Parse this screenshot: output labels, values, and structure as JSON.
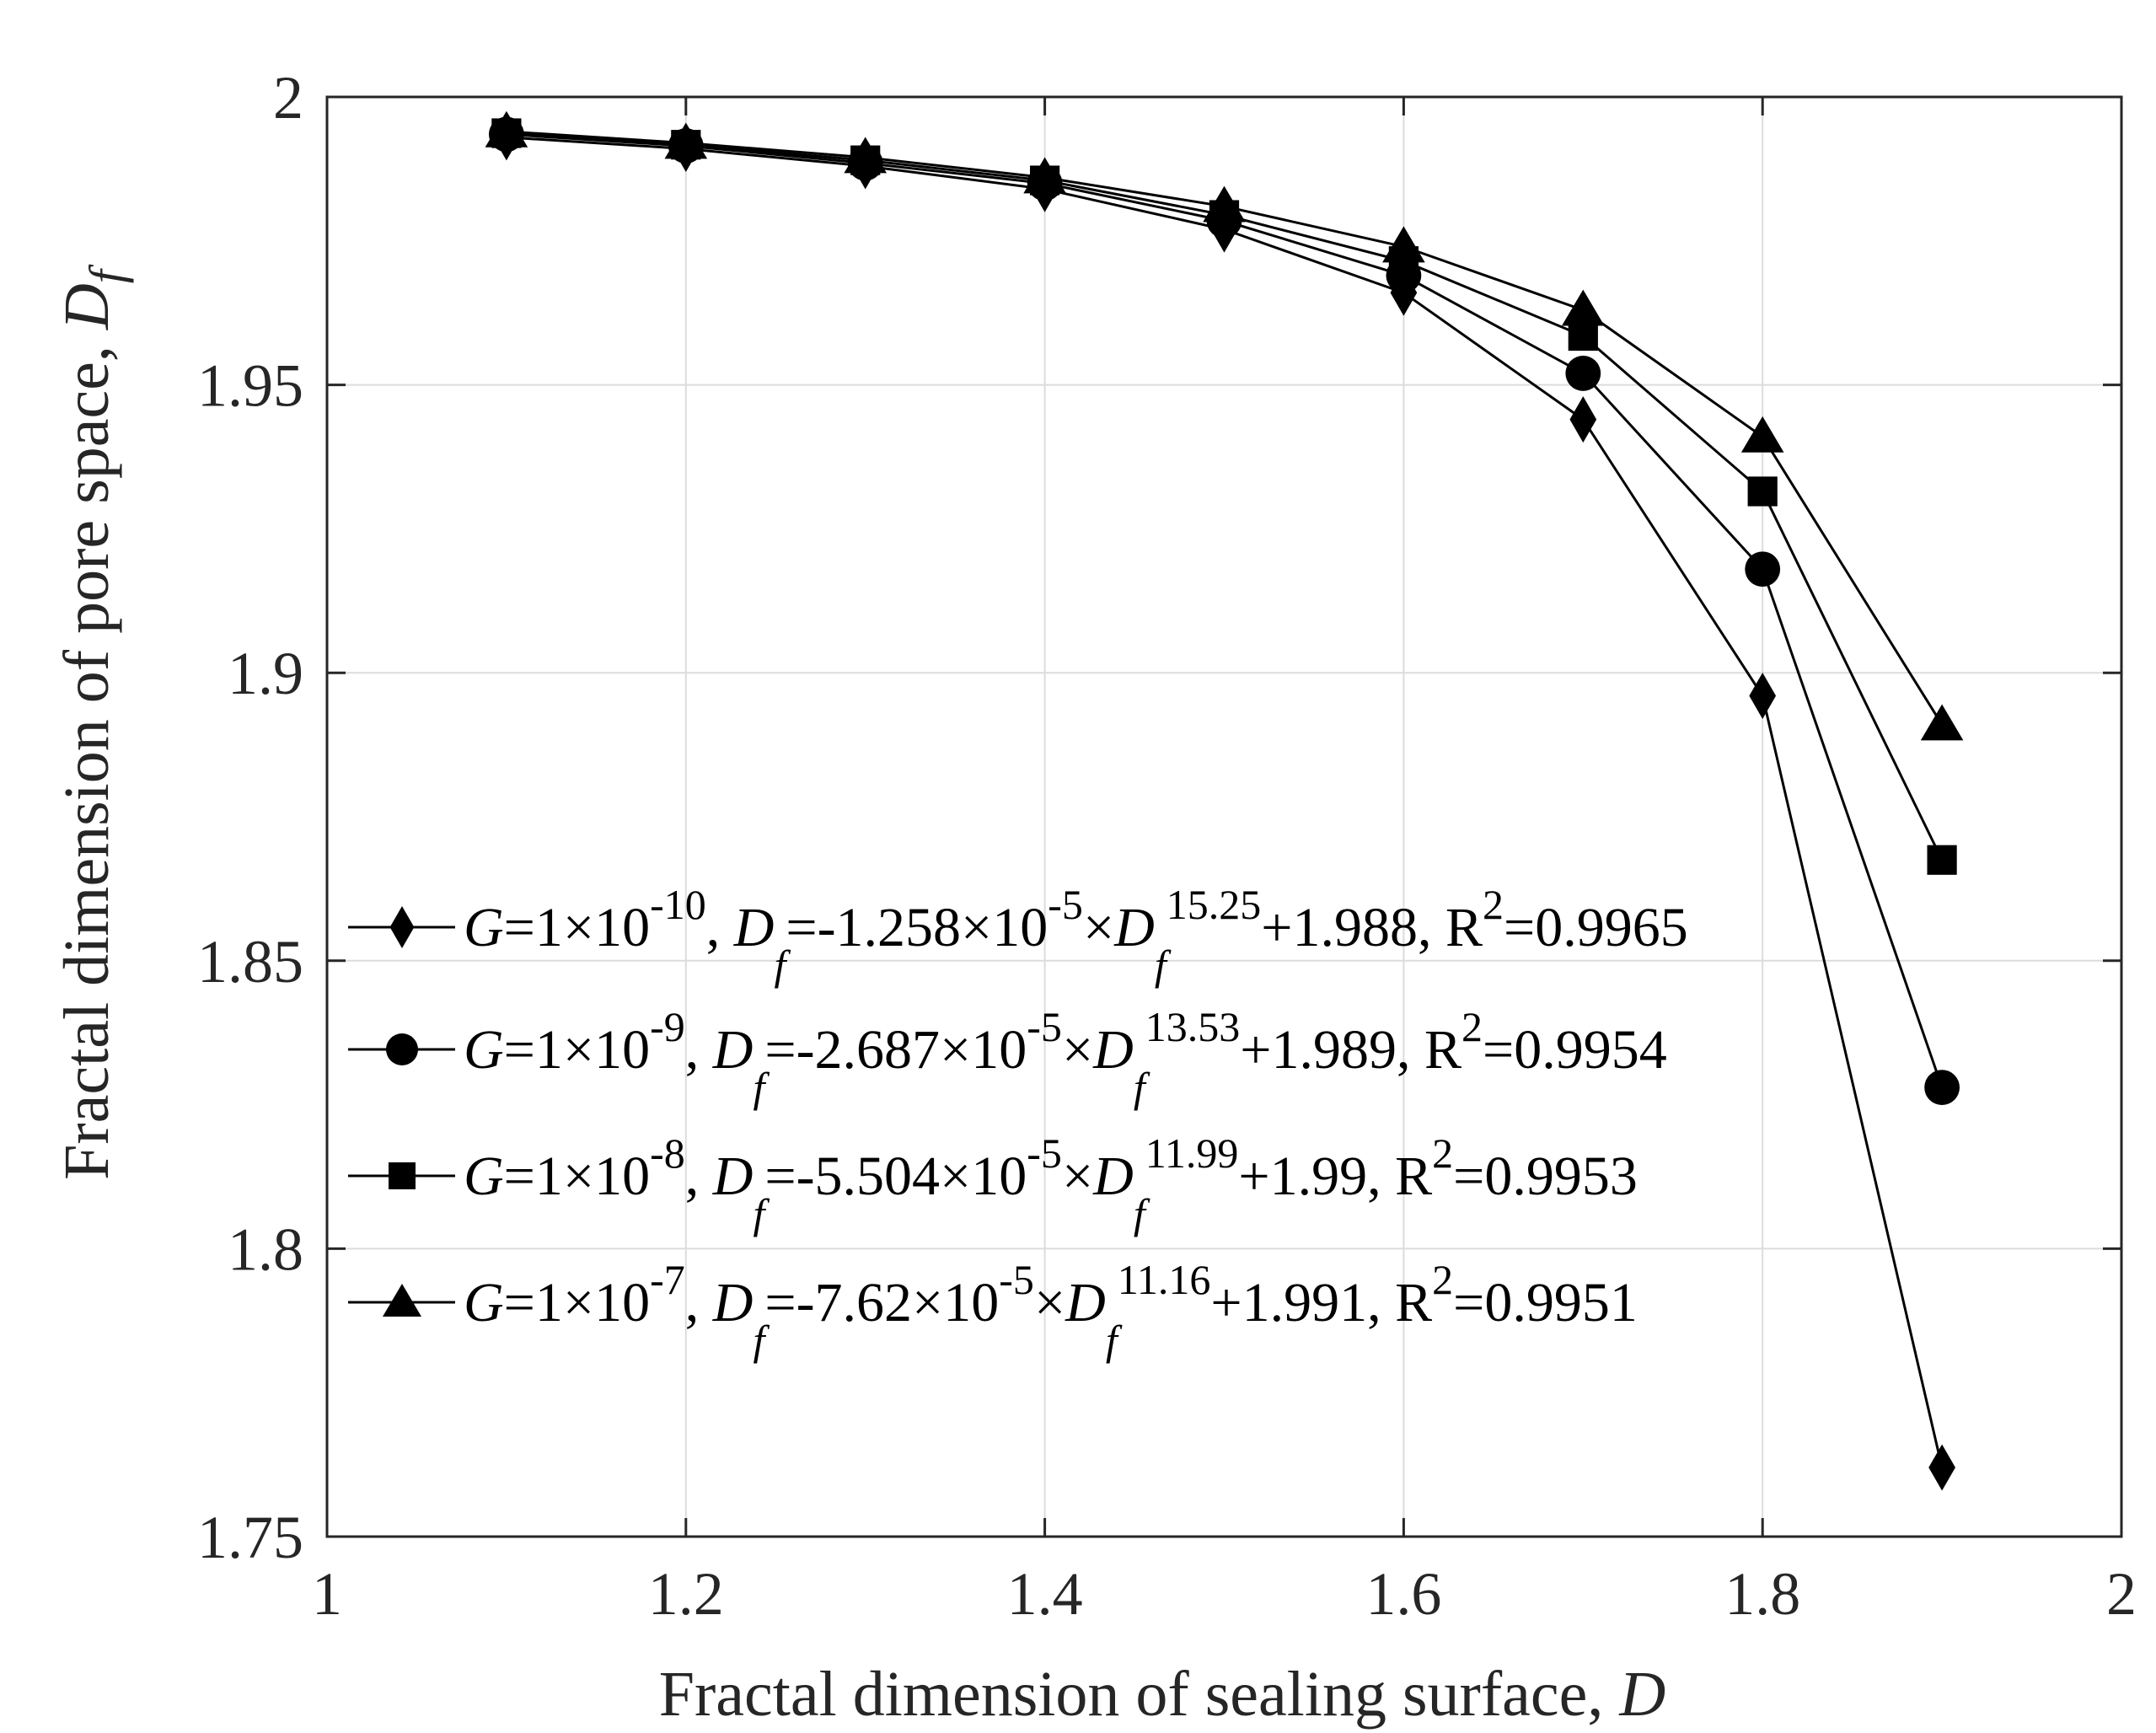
{
  "chart_data": {
    "type": "line",
    "title": "",
    "xlabel": "Fractal dimension of sealing surface, ",
    "xlabel_var": "D",
    "ylabel": "Fractal dimension of pore space, ",
    "ylabel_var": "D",
    "ylabel_var_sub": "f",
    "xlim": [
      1,
      2
    ],
    "ylim": [
      1.75,
      2
    ],
    "xticks": [
      1,
      1.2,
      1.4,
      1.6,
      1.8,
      2
    ],
    "xtick_labels": [
      "1",
      "1.2",
      "1.4",
      "1.6",
      "1.8",
      "2"
    ],
    "yticks": [
      1.75,
      1.8,
      1.85,
      1.9,
      1.95,
      2
    ],
    "ytick_labels": [
      "1.75",
      "1.8",
      "1.85",
      "1.9",
      "1.95",
      "2"
    ],
    "grid": true,
    "legend_position": "left-middle",
    "x": [
      1.1,
      1.2,
      1.3,
      1.4,
      1.5,
      1.6,
      1.7,
      1.8,
      1.9
    ],
    "series": [
      {
        "marker": "diamond",
        "values": [
          1.993,
          1.991,
          1.988,
          1.984,
          1.977,
          1.966,
          1.944,
          1.896,
          1.762
        ],
        "legend": {
          "g_var": "G",
          "g_eq": "=1×10",
          "g_exp": "-10",
          "sep": ", ",
          "df_var": "D",
          "df_sub": "f",
          "eq": "=-1.258×10",
          "coef_exp": "-5",
          "times": "×",
          "pow": "15.25",
          "rest": "+1.988, R",
          "r_exp": "2",
          "r_val": "=0.9965"
        }
      },
      {
        "marker": "circle",
        "values": [
          1.9935,
          1.9915,
          1.9885,
          1.985,
          1.9785,
          1.969,
          1.952,
          1.918,
          1.828
        ],
        "legend": {
          "g_var": "G",
          "g_eq": "=1×10",
          "g_exp": "-9",
          "sep": ", ",
          "df_var": "D",
          "df_sub": "f",
          "eq": "=-2.687×10",
          "coef_exp": "-5",
          "times": "×",
          "pow": "13.53",
          "rest": "+1.989, R",
          "r_exp": "2",
          "r_val": "=0.9954"
        }
      },
      {
        "marker": "square",
        "values": [
          1.9937,
          1.9917,
          1.989,
          1.9855,
          1.9795,
          1.9715,
          1.9585,
          1.9315,
          1.8675
        ],
        "legend": {
          "g_var": "G",
          "g_eq": "=1×10",
          "g_exp": "-8",
          "sep": ", ",
          "df_var": "D",
          "df_sub": "f",
          "eq": "=-5.504×10",
          "coef_exp": "-5",
          "times": "×",
          "pow": "11.99",
          "rest": "+1.99, R",
          "r_exp": "2",
          "r_val": "=0.9953"
        }
      },
      {
        "marker": "triangle",
        "values": [
          1.994,
          1.992,
          1.9895,
          1.986,
          1.981,
          1.974,
          1.963,
          1.941,
          1.891
        ],
        "legend": {
          "g_var": "G",
          "g_eq": "=1×10",
          "g_exp": "-7",
          "sep": ", ",
          "df_var": "D",
          "df_sub": "f",
          "eq": "=-7.62×10",
          "coef_exp": "-5",
          "times": "×",
          "pow": "11.16",
          "rest": "+1.991, R",
          "r_exp": "2",
          "r_val": "=0.9951"
        }
      }
    ],
    "colors": {
      "line": "#000000",
      "axis": "#262626",
      "grid": "#dcdcdc",
      "background": "#ffffff"
    }
  }
}
